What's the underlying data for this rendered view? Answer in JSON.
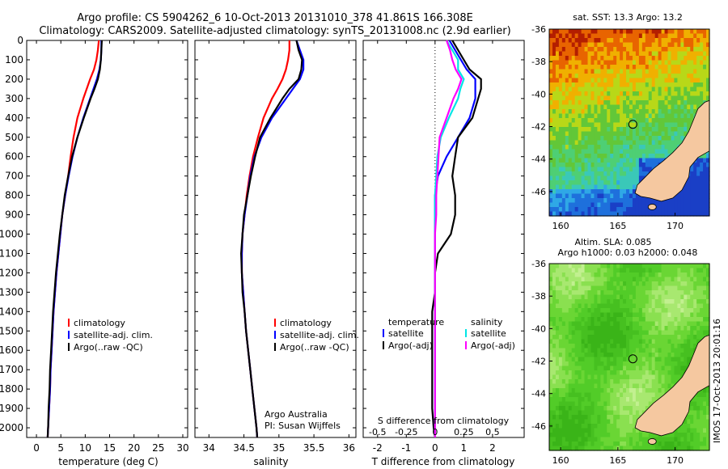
{
  "header": {
    "title_line1": "Argo profile: CS 5904262_6 10-Oct-2013 20131010_378 41.861S 166.308E",
    "title_line2": "Climatology: CARS2009. Satellite-adjusted climatology: synTS_20131008.nc (2.9d earlier)"
  },
  "colors": {
    "climatology": "#ff0000",
    "satellite": "#0000ff",
    "argo": "#000000",
    "salinity_satellite": "#00e5e5",
    "salinity_argo": "#ff00ff",
    "land": "#f5c8a0"
  },
  "depth_ticks": [
    "0",
    "100",
    "200",
    "300",
    "400",
    "500",
    "600",
    "700",
    "800",
    "900",
    "1000",
    "1100",
    "1200",
    "1300",
    "1400",
    "1500",
    "1600",
    "1700",
    "1800",
    "1900",
    "2000"
  ],
  "chart_data": [
    {
      "type": "line",
      "id": "temperature",
      "xlabel": "temperature (deg C)",
      "ylabel": "",
      "xlim": [
        -2,
        31
      ],
      "ylim": [
        2050,
        0
      ],
      "xticks": [
        "0",
        "5",
        "10",
        "15",
        "20",
        "25",
        "30"
      ],
      "legend": {
        "position": "bottom-right",
        "items": [
          "climatology",
          "satellite-adj. clim.",
          "Argo(..raw -QC)"
        ]
      },
      "depth": [
        0,
        50,
        100,
        150,
        200,
        250,
        300,
        400,
        500,
        600,
        700,
        800,
        900,
        1000,
        1100,
        1200,
        1300,
        1400,
        1500,
        1600,
        1700,
        1800,
        1900,
        2000,
        2050
      ],
      "series": [
        {
          "name": "climatology",
          "color_key": "climatology",
          "values": [
            12.8,
            12.6,
            12.3,
            11.8,
            11.0,
            10.3,
            9.6,
            8.4,
            7.6,
            7.0,
            6.5,
            5.9,
            5.3,
            4.9,
            4.5,
            4.1,
            3.8,
            3.5,
            3.3,
            3.1,
            2.9,
            2.8,
            2.6,
            2.4,
            2.3
          ]
        },
        {
          "name": "satellite-adj. clim.",
          "color_key": "satellite",
          "values": [
            13.3,
            13.3,
            13.2,
            12.9,
            12.4,
            11.7,
            11.0,
            9.6,
            8.4,
            7.4,
            6.6,
            5.9,
            5.3,
            4.9,
            4.5,
            4.1,
            3.8,
            3.5,
            3.3,
            3.1,
            2.9,
            2.8,
            2.6,
            2.4,
            2.3
          ]
        },
        {
          "name": "Argo(..raw -QC)",
          "color_key": "argo",
          "values": [
            13.4,
            13.3,
            13.2,
            13.0,
            12.6,
            11.9,
            11.1,
            9.7,
            8.4,
            7.3,
            6.5,
            5.8,
            5.3,
            4.8,
            4.4,
            4.0,
            3.7,
            3.4,
            3.2,
            3.0,
            2.8,
            2.7,
            2.5,
            2.4,
            2.3
          ]
        }
      ]
    },
    {
      "type": "line",
      "id": "salinity",
      "xlabel": "salinity",
      "ylabel": "",
      "xlim": [
        33.8,
        36.1
      ],
      "ylim": [
        2050,
        0
      ],
      "xticks": [
        "34",
        "34.5",
        "35",
        "35.5",
        "36"
      ],
      "legend": {
        "position": "bottom-right",
        "items": [
          "climatology",
          "satellite-adj. clim.",
          "Argo(..raw -QC)"
        ]
      },
      "annotations": [
        "Argo Australia",
        "PI: Susan Wijffels"
      ],
      "depth": [
        0,
        50,
        100,
        150,
        200,
        250,
        300,
        400,
        500,
        600,
        700,
        800,
        900,
        1000,
        1100,
        1200,
        1300,
        1400,
        1500,
        1600,
        1700,
        1800,
        1900,
        2000,
        2050
      ],
      "series": [
        {
          "name": "climatology",
          "color_key": "climatology",
          "values": [
            35.15,
            35.15,
            35.13,
            35.1,
            35.05,
            34.98,
            34.9,
            34.78,
            34.7,
            34.63,
            34.58,
            34.54,
            34.51,
            34.48,
            34.47,
            34.47,
            34.49,
            34.51,
            34.53,
            34.56,
            34.59,
            34.62,
            34.65,
            34.68,
            34.69
          ]
        },
        {
          "name": "satellite-adj. clim.",
          "color_key": "satellite",
          "values": [
            35.25,
            35.3,
            35.35,
            35.35,
            35.3,
            35.2,
            35.1,
            34.9,
            34.75,
            34.65,
            34.59,
            34.55,
            34.51,
            34.48,
            34.47,
            34.47,
            34.49,
            34.51,
            34.53,
            34.56,
            34.59,
            34.62,
            34.65,
            34.68,
            34.69
          ]
        },
        {
          "name": "Argo(..raw -QC)",
          "color_key": "argo",
          "values": [
            35.25,
            35.28,
            35.33,
            35.32,
            35.28,
            35.15,
            35.05,
            34.88,
            34.73,
            34.66,
            34.6,
            34.55,
            34.5,
            34.48,
            34.46,
            34.47,
            34.48,
            34.51,
            34.53,
            34.56,
            34.59,
            34.62,
            34.65,
            34.68,
            34.69
          ]
        }
      ]
    },
    {
      "type": "line",
      "id": "difference",
      "xlabel_bottom": "T difference from climatology",
      "xlabel_top": "S difference from climatology",
      "xlim": [
        -2.5,
        3.1
      ],
      "ylim": [
        2050,
        0
      ],
      "xticks_T": [
        "-2",
        "-1",
        "0",
        "1",
        "2"
      ],
      "xticks_S": [
        "-0.5",
        "-0.25",
        "0",
        "0.25",
        "0.5"
      ],
      "legend": {
        "position": "bottom",
        "temperature_heading": "temperature",
        "salinity_heading": "salinity",
        "items_T": [
          "satellite",
          "Argo(-adj)"
        ],
        "items_S": [
          "satellite",
          "Argo(-adj)"
        ]
      },
      "depth": [
        0,
        50,
        100,
        150,
        200,
        250,
        300,
        400,
        500,
        600,
        700,
        800,
        900,
        1000,
        1100,
        1200,
        1300,
        1400,
        1500,
        1600,
        1700,
        1800,
        1900,
        2000,
        2050
      ],
      "series": [
        {
          "name": "T satellite",
          "color_key": "satellite",
          "values": [
            0.5,
            0.7,
            0.9,
            1.1,
            1.4,
            1.4,
            1.4,
            1.2,
            0.8,
            0.4,
            0.1,
            0.0,
            0.0,
            0.0,
            0.0,
            0.0,
            0.0,
            0.0,
            0.0,
            0.0,
            0.0,
            0.0,
            0.0,
            0.0,
            0.0
          ]
        },
        {
          "name": "T Argo(-adj)",
          "color_key": "argo",
          "values": [
            0.6,
            0.8,
            1.0,
            1.2,
            1.6,
            1.6,
            1.5,
            1.3,
            0.8,
            0.7,
            0.6,
            0.7,
            0.7,
            0.55,
            0.1,
            0.0,
            0.0,
            -0.1,
            -0.1,
            -0.1,
            -0.1,
            -0.1,
            -0.1,
            -0.05,
            0.0
          ]
        },
        {
          "name": "S satellite",
          "color_key": "salinity_satellite",
          "values": [
            0.1,
            0.15,
            0.2,
            0.2,
            0.25,
            0.22,
            0.2,
            0.12,
            0.05,
            0.02,
            0.01,
            0.0,
            0.0,
            0.0,
            0.0,
            0.0,
            0.0,
            0.0,
            0.0,
            0.0,
            0.0,
            0.0,
            0.0,
            0.0,
            0.0
          ]
        },
        {
          "name": "S Argo(-adj)",
          "color_key": "salinity_argo",
          "values": [
            0.1,
            0.13,
            0.15,
            0.18,
            0.23,
            0.2,
            0.16,
            0.1,
            0.04,
            0.03,
            0.02,
            0.01,
            0.01,
            0.0,
            0.0,
            0.0,
            0.0,
            0.0,
            0.0,
            0.0,
            0.0,
            0.0,
            0.0,
            0.0,
            0.0
          ]
        }
      ]
    },
    {
      "type": "heatmap",
      "id": "sst-map",
      "title": "sat. SST: 13.3 Argo: 13.2",
      "xlim": [
        159,
        173
      ],
      "ylim": [
        -47.5,
        -36
      ],
      "xticks": [
        "160",
        "165",
        "170"
      ],
      "yticks": [
        "-36",
        "-38",
        "-40",
        "-42",
        "-44",
        "-46"
      ],
      "float_position": {
        "lon": 166.308,
        "lat": -41.861
      },
      "palette": [
        "#1a3fc6",
        "#1e70dc",
        "#2fa8e6",
        "#3ac8b8",
        "#4ecf74",
        "#62c738",
        "#b8d818",
        "#f0b000",
        "#e86400",
        "#b41e00"
      ]
    },
    {
      "type": "heatmap",
      "id": "sla-map",
      "title": "Altim. SLA: 0.085",
      "subtitle": "Argo h1000: 0.03 h2000: 0.048",
      "side_label": "IMOS 17-Oct-2013 20:01:16",
      "xlim": [
        159,
        173
      ],
      "ylim": [
        -47.5,
        -36
      ],
      "xticks": [
        "160",
        "165",
        "170"
      ],
      "yticks": [
        "-36",
        "-38",
        "-40",
        "-42",
        "-44",
        "-46"
      ],
      "float_position": {
        "lon": 166.308,
        "lat": -41.861
      },
      "palette": [
        "#3ab418",
        "#46c020",
        "#52cc28",
        "#6ad634",
        "#8ae050",
        "#a8e870",
        "#c2f090"
      ]
    }
  ]
}
